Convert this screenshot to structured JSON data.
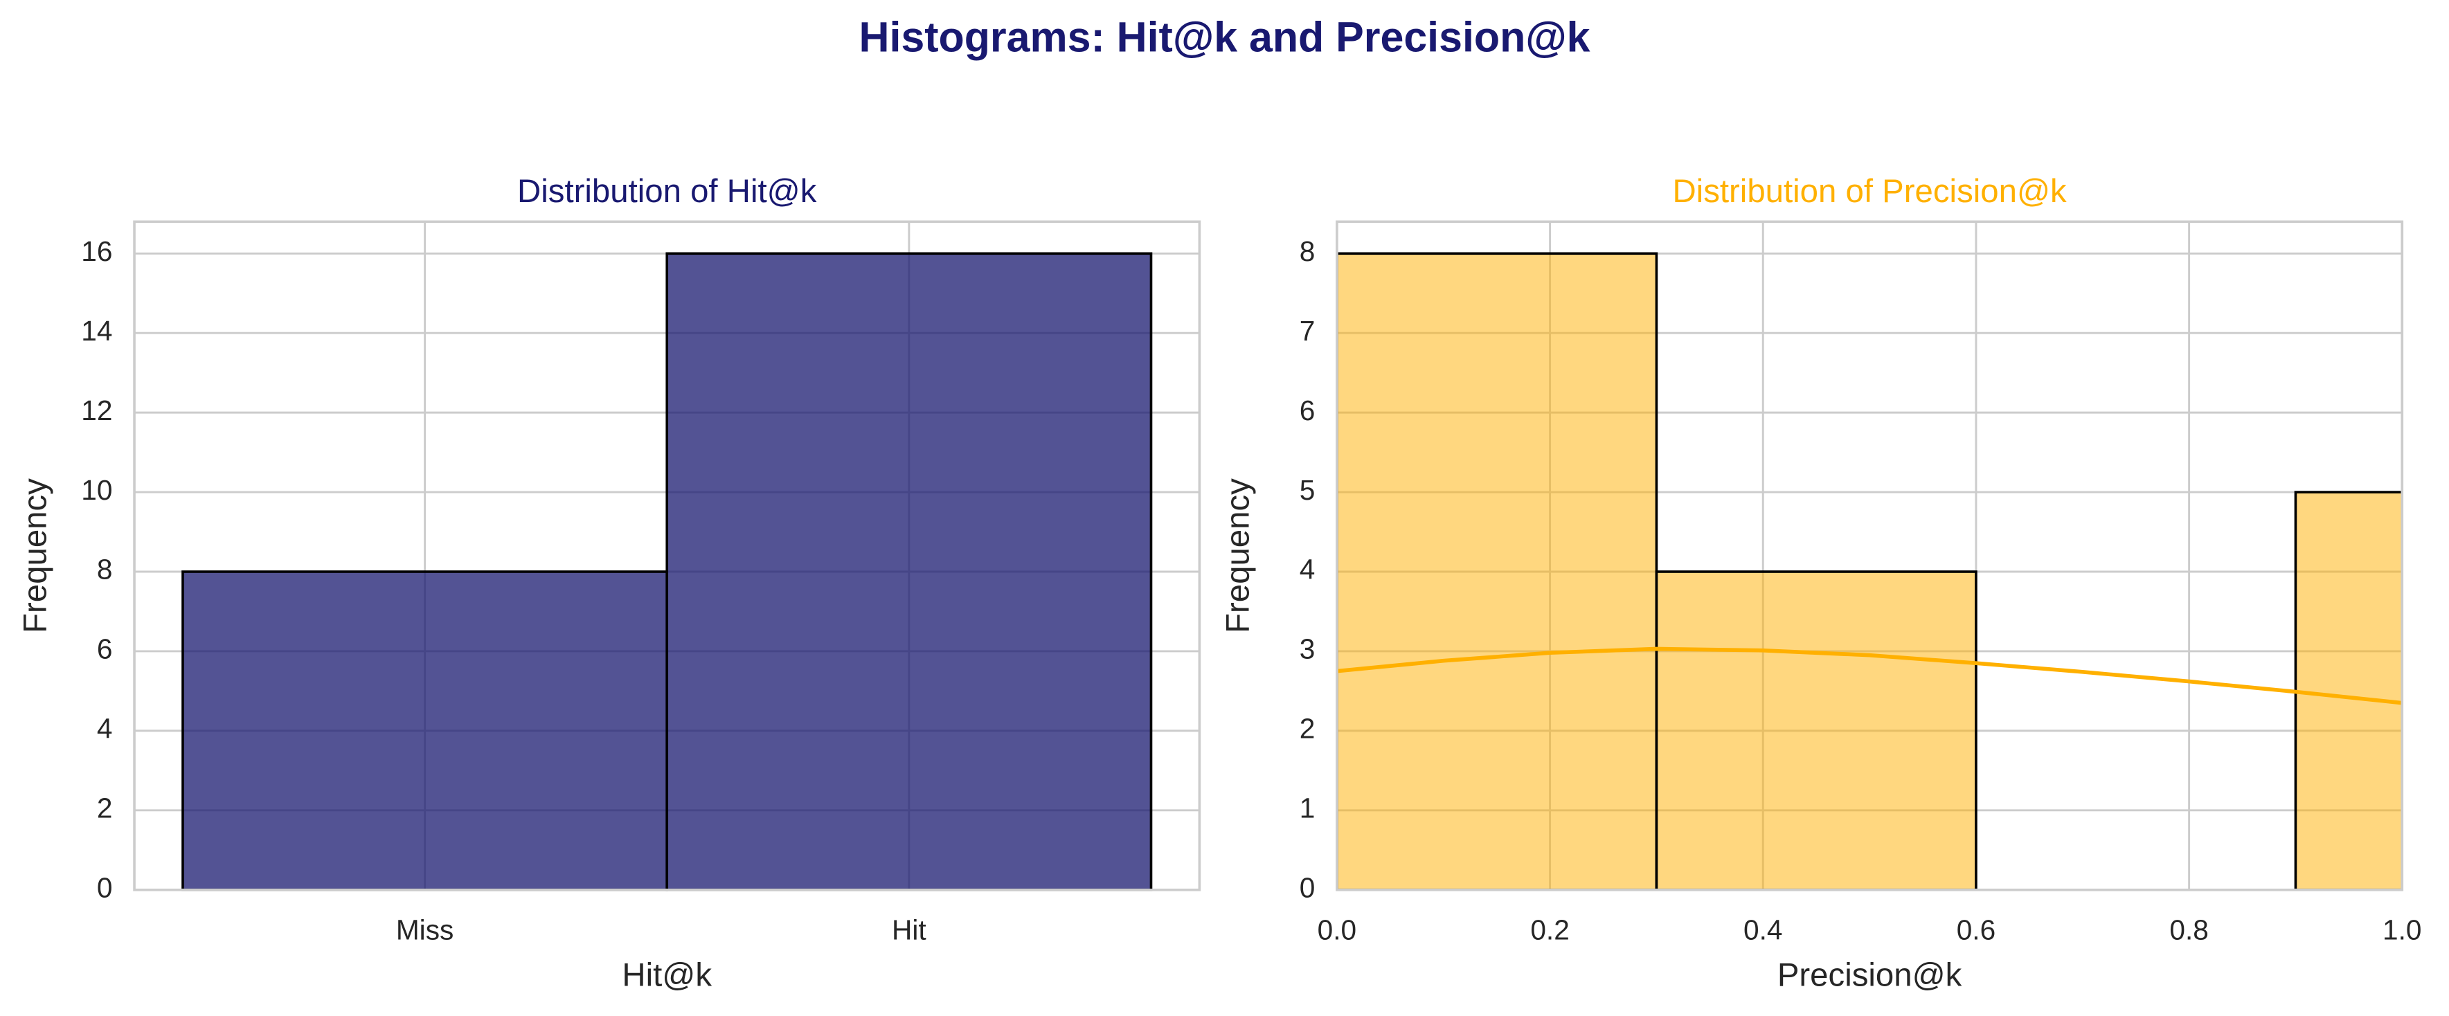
{
  "title": "Histograms: Hit@k and Precision@k",
  "chart_data": [
    {
      "type": "bar",
      "title": "Distribution of Hit@k",
      "xlabel": "Hit@k",
      "ylabel": "Frequency",
      "categories": [
        "Miss",
        "Hit"
      ],
      "values": [
        8,
        16
      ],
      "color": "#191970",
      "ylim": [
        0,
        16.8
      ],
      "yticks": [
        0,
        2,
        4,
        6,
        8,
        10,
        12,
        14,
        16
      ],
      "grid": true
    },
    {
      "type": "histogram",
      "title": "Distribution of Precision@k",
      "xlabel": "Precision@k",
      "ylabel": "Frequency",
      "bins": [
        0,
        0.3,
        0.6,
        0.9,
        1.2
      ],
      "values": [
        8,
        4,
        0,
        5
      ],
      "color": "#FFB000",
      "xlim": [
        0,
        1
      ],
      "xticks": [
        {
          "value": 0,
          "label": "0.0"
        },
        {
          "value": 0.2,
          "label": "0.2"
        },
        {
          "value": 0.4,
          "label": "0.4"
        },
        {
          "value": 0.6,
          "label": "0.6"
        },
        {
          "value": 0.8,
          "label": "0.8"
        },
        {
          "value": 1,
          "label": "1.0"
        }
      ],
      "ylim": [
        0,
        8.4
      ],
      "yticks": [
        0,
        1,
        2,
        3,
        4,
        5,
        6,
        7,
        8
      ],
      "grid": true,
      "kde": {
        "x": [
          0,
          0.1,
          0.2,
          0.3,
          0.4,
          0.5,
          0.6,
          0.7,
          0.8,
          0.9,
          1
        ],
        "values": [
          2.75,
          2.88,
          2.98,
          3.03,
          3.01,
          2.95,
          2.85,
          2.74,
          2.62,
          2.49,
          2.35
        ]
      }
    }
  ]
}
